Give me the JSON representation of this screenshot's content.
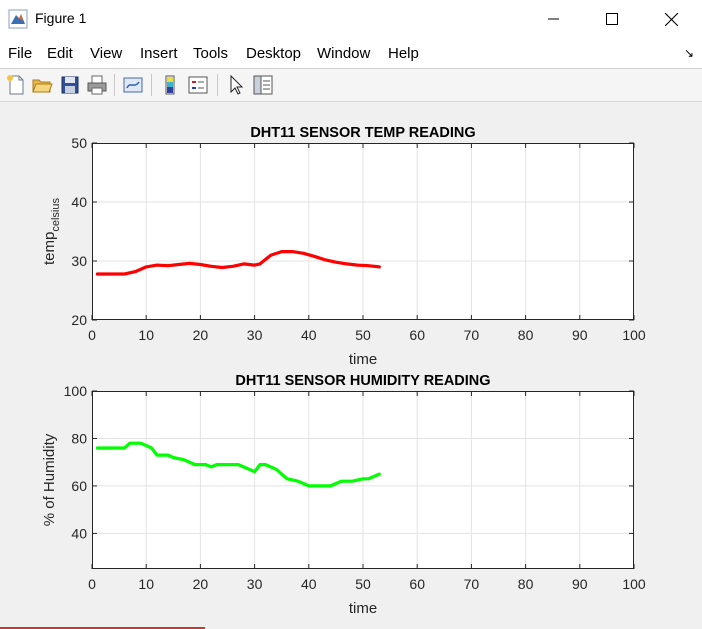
{
  "window": {
    "title": "Figure 1"
  },
  "menu": [
    "File",
    "Edit",
    "View",
    "Insert",
    "Tools",
    "Desktop",
    "Window",
    "Help"
  ],
  "toolbar": [
    "new-figure-icon",
    "open-file-icon",
    "save-icon",
    "print-icon",
    "link-plot-icon",
    "insert-colorbar-icon",
    "insert-legend-icon",
    "pointer-icon",
    "property-inspector-icon"
  ],
  "chart_data": [
    {
      "type": "line",
      "title": "DHT11 SENSOR TEMP READING",
      "xlabel": "time",
      "ylabel": "temp",
      "ylabel_subscript": "celsius",
      "xlim": [
        0,
        100
      ],
      "ylim": [
        20,
        50
      ],
      "xticks": [
        0,
        10,
        20,
        30,
        40,
        50,
        60,
        70,
        80,
        90,
        100
      ],
      "yticks": [
        20,
        30,
        40,
        50
      ],
      "grid": true,
      "series": [
        {
          "color": "#ff0000",
          "x": [
            1,
            3,
            6,
            8,
            10,
            12,
            14,
            16,
            18,
            20,
            22,
            24,
            26,
            28,
            30,
            31,
            33,
            35,
            37,
            39,
            41,
            43,
            45,
            47,
            49,
            51,
            53
          ],
          "y": [
            27.8,
            27.8,
            27.8,
            28.2,
            29.0,
            29.3,
            29.2,
            29.4,
            29.6,
            29.4,
            29.1,
            28.9,
            29.1,
            29.5,
            29.3,
            29.5,
            31.0,
            31.6,
            31.6,
            31.3,
            30.8,
            30.2,
            29.8,
            29.5,
            29.3,
            29.2,
            29.0
          ]
        }
      ]
    },
    {
      "type": "line",
      "title": "DHT11 SENSOR HUMIDITY READING",
      "xlabel": "time",
      "ylabel": "% of Humidity",
      "xlim": [
        0,
        100
      ],
      "ylim": [
        25,
        100
      ],
      "xticks": [
        0,
        10,
        20,
        30,
        40,
        50,
        60,
        70,
        80,
        90,
        100
      ],
      "yticks": [
        40,
        60,
        80,
        100
      ],
      "grid": true,
      "series": [
        {
          "color": "#00ff00",
          "x": [
            1,
            3,
            5,
            6,
            7,
            9,
            10,
            11,
            12,
            14,
            15,
            17,
            19,
            21,
            22,
            23,
            25,
            27,
            29,
            30,
            31,
            32,
            34,
            36,
            38,
            40,
            42,
            44,
            46,
            48,
            50,
            51,
            53
          ],
          "y": [
            76,
            76,
            76,
            76,
            78,
            78,
            77,
            76,
            73,
            73,
            72,
            71,
            69,
            69,
            68,
            69,
            69,
            69,
            67,
            66,
            69,
            69,
            67,
            63,
            62,
            60,
            60,
            60,
            62,
            62,
            63,
            63,
            65
          ]
        }
      ]
    }
  ]
}
